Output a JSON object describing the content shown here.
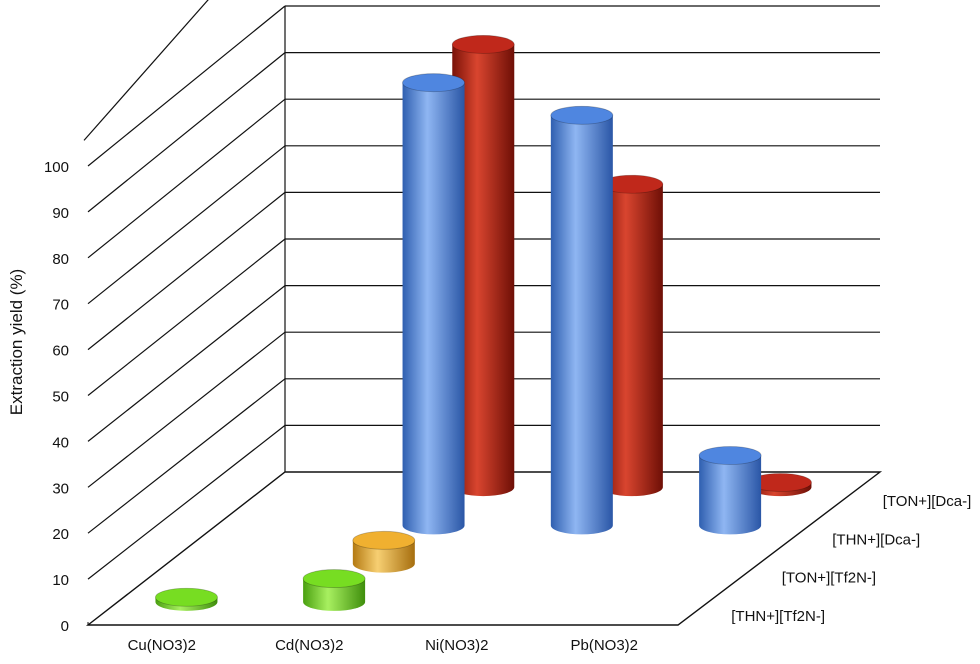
{
  "chart_data": {
    "type": "bar",
    "style": "3d-cylinder",
    "ylabel": "Extraction yield (%)",
    "ylim": [
      0,
      100
    ],
    "yticks": [
      "0",
      "10",
      "20",
      "30",
      "40",
      "50",
      "60",
      "70",
      "80",
      "90",
      "100"
    ],
    "categories": [
      "Cu(NO3)2",
      "Cd(NO3)2",
      "Ni(NO3)2",
      "Pb(NO3)2"
    ],
    "series": [
      {
        "name": "[THN+][Tf2N-]",
        "color": "#77dd22",
        "values": [
          1,
          5,
          0,
          0
        ]
      },
      {
        "name": "[TON+][Tf2N-]",
        "color": "#f0b030",
        "values": [
          0,
          5,
          0,
          0
        ]
      },
      {
        "name": "[THN+][Dca-]",
        "color": "#4f86e0",
        "values": [
          0,
          95,
          88,
          15
        ]
      },
      {
        "name": "[TON+][Dca-]",
        "color": "#c0281b",
        "values": [
          0,
          95,
          65,
          1
        ]
      }
    ],
    "zero_cap_colors": [
      "#222222"
    ],
    "grid": true,
    "legend": "depth-axis-right"
  }
}
